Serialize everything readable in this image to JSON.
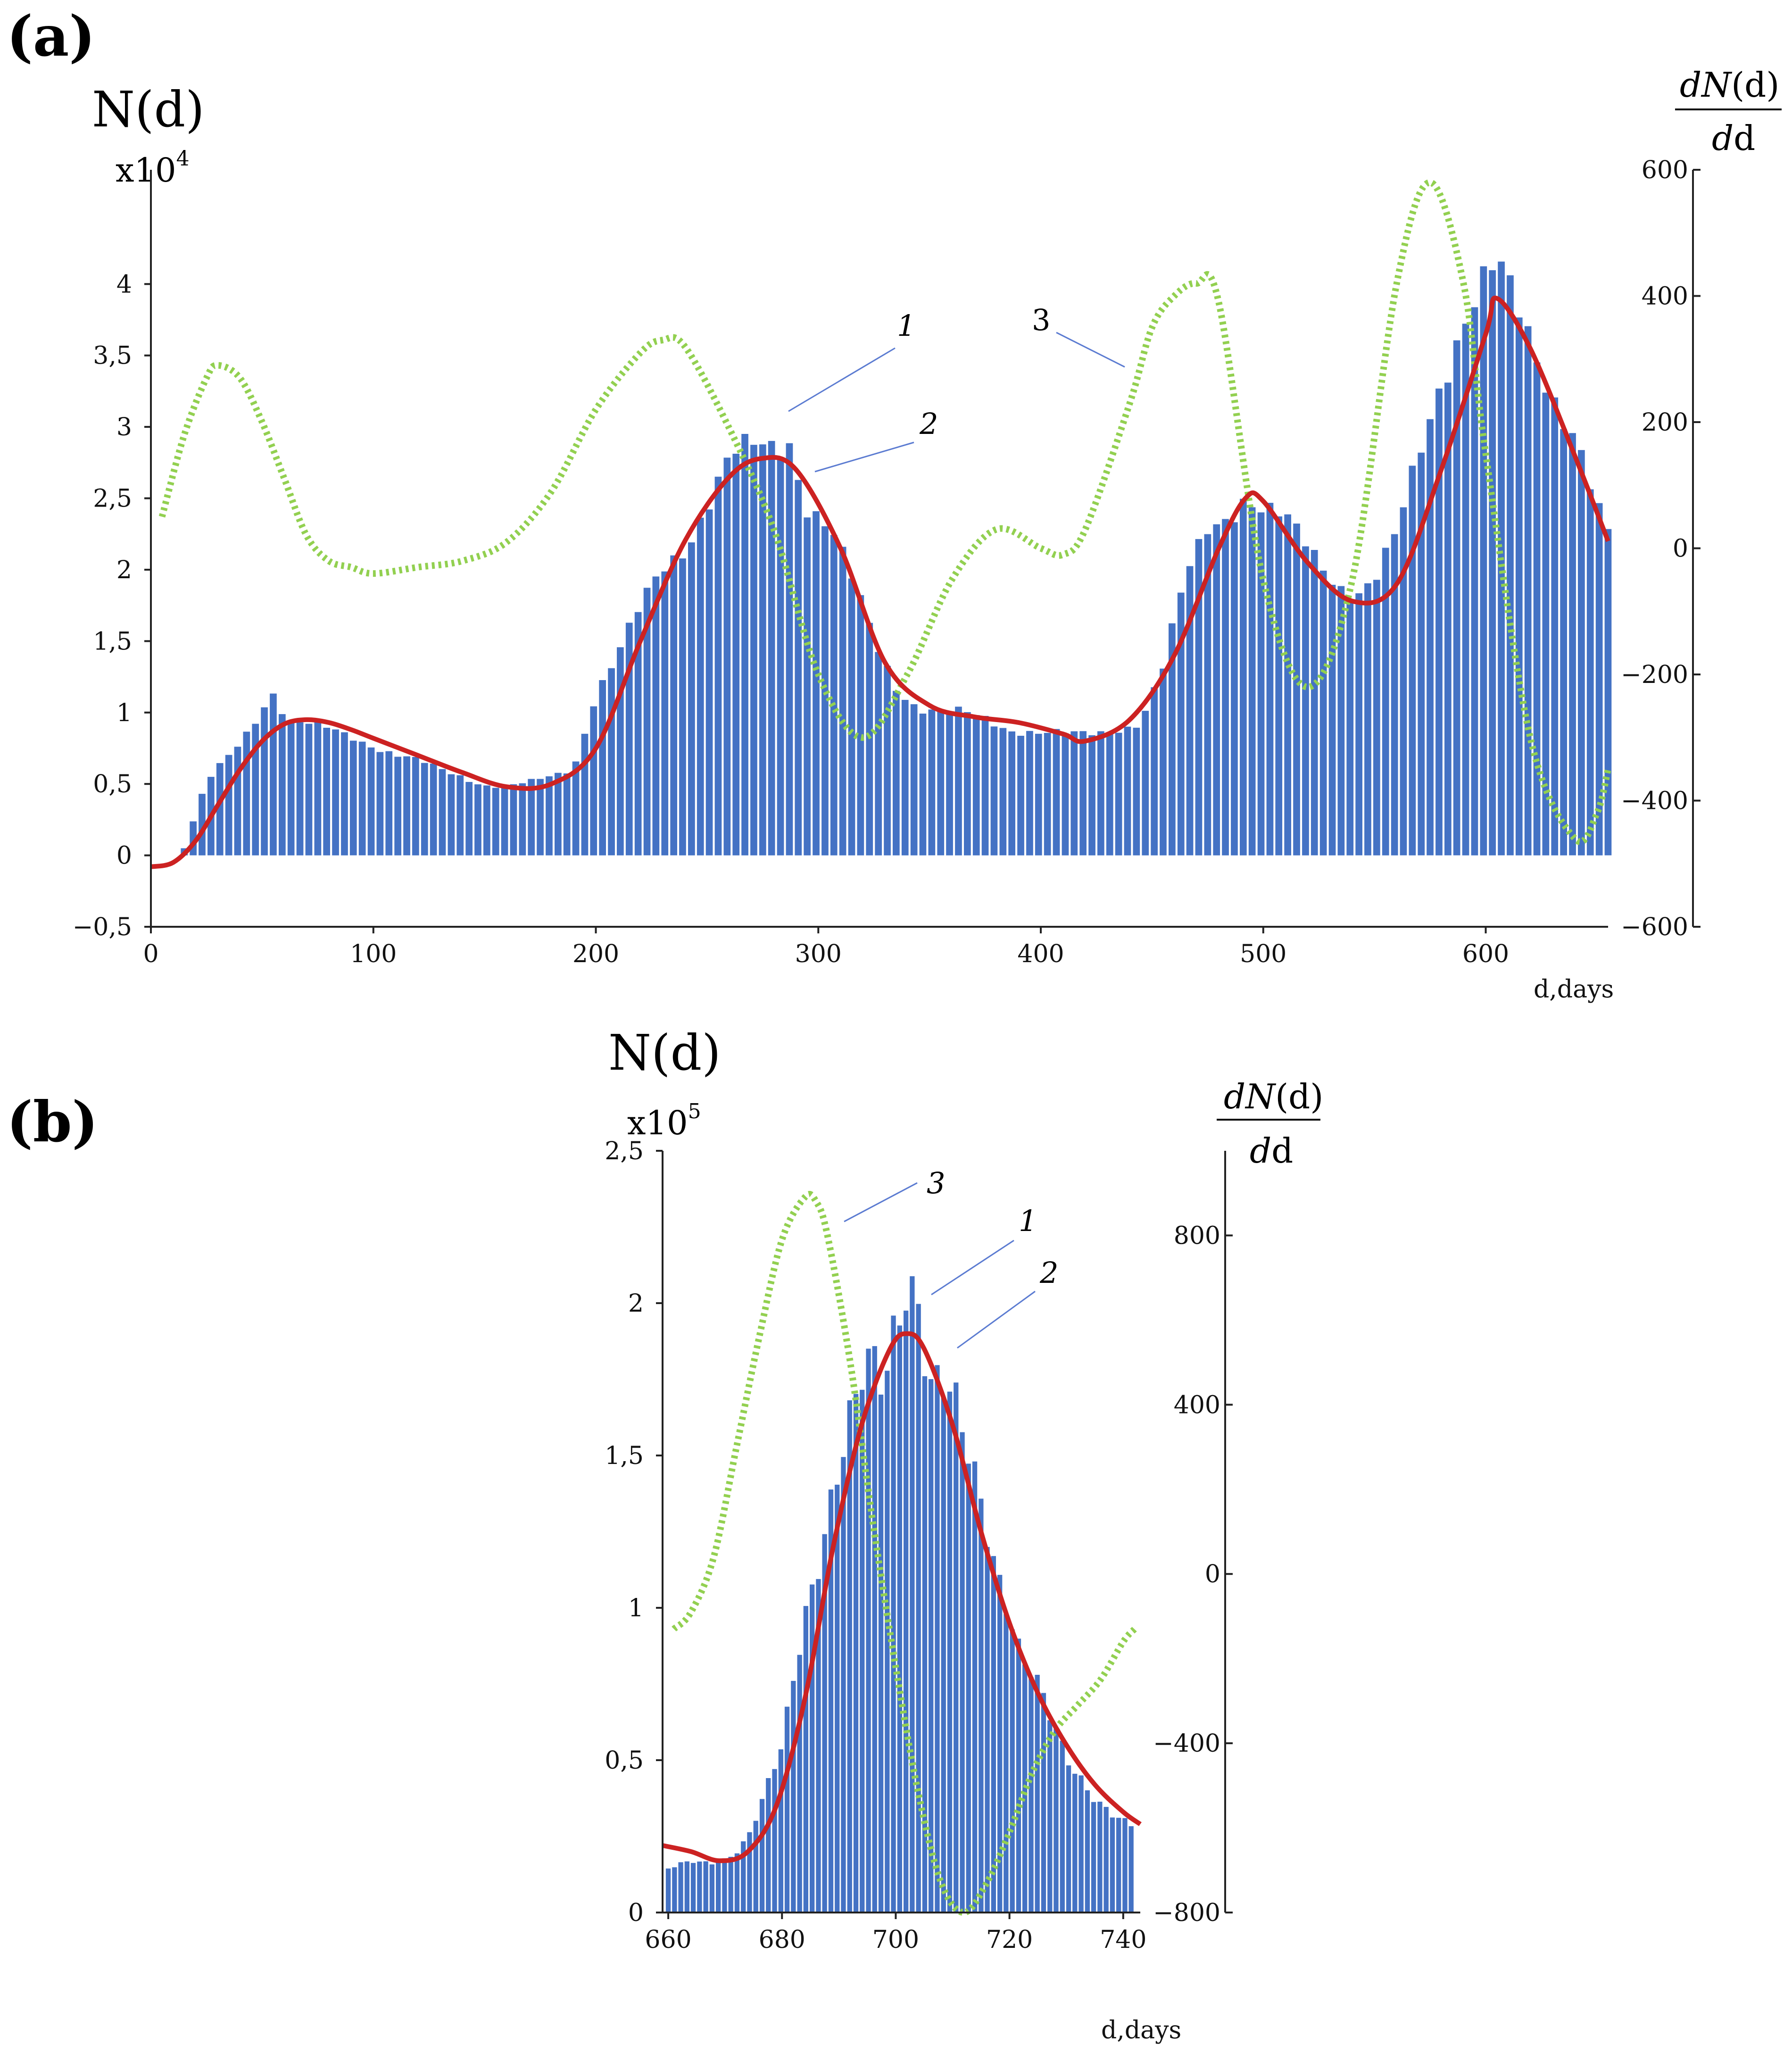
{
  "figure": {
    "panels": [
      {
        "id": "a",
        "label": "(a)",
        "y_label": "N(d)",
        "y_multiplier": "x10",
        "y_multiplier_exp": "4",
        "right_label_num_pre": "dN",
        "right_label_num_post": "(d)",
        "right_label_den_pre": "d",
        "right_label_den_post": "d",
        "x_axis_label": "d,days",
        "annotations": [
          {
            "text": "1",
            "italic": true
          },
          {
            "text": "2",
            "italic": true
          },
          {
            "text": "3",
            "italic": false
          }
        ]
      },
      {
        "id": "b",
        "label": "(b)",
        "y_label": "N(d)",
        "y_multiplier": "x10",
        "y_multiplier_exp": "5",
        "right_label_num_pre": "dN",
        "right_label_num_post": "(d)",
        "right_label_den_pre": "d",
        "right_label_den_post": "d",
        "x_axis_label": "d,days",
        "annotations": [
          {
            "text": "3",
            "italic": true
          },
          {
            "text": "1",
            "italic": true
          },
          {
            "text": "2",
            "italic": true
          }
        ]
      }
    ]
  },
  "chart_data": [
    {
      "type": "bar",
      "panel": "a",
      "x_ticks": [
        "0",
        "100",
        "200",
        "300",
        "400",
        "500",
        "600"
      ],
      "y_left_ticks": [
        "−0,5",
        "0",
        "0,5",
        "1",
        "1,5",
        "2",
        "2,5",
        "3",
        "3,5",
        "4"
      ],
      "y_right_ticks": [
        "−600",
        "−400",
        "−200",
        "0",
        "200",
        "400",
        "600"
      ],
      "xlim": [
        0,
        655
      ],
      "ylim_left": [
        -0.5,
        4.8
      ],
      "ylim_right": [
        -600,
        600
      ],
      "series": [
        {
          "name": "1",
          "kind": "bar",
          "color": "#4472c4",
          "x": [
            15,
            25,
            40,
            52,
            55,
            62,
            70,
            80,
            90,
            100,
            110,
            120,
            130,
            140,
            150,
            160,
            170,
            180,
            190,
            200,
            210,
            220,
            230,
            240,
            250,
            260,
            270,
            280,
            287,
            295,
            305,
            315,
            325,
            335,
            345,
            355,
            365,
            375,
            385,
            395,
            405,
            415,
            425,
            435,
            445,
            455,
            465,
            475,
            485,
            492,
            500,
            510,
            520,
            530,
            540,
            550,
            560,
            570,
            580,
            590,
            600,
            605,
            610,
            620,
            630,
            640,
            650,
            655
          ],
          "y": [
            0.05,
            0.5,
            0.8,
            1.1,
            1.15,
            0.92,
            0.9,
            0.88,
            0.85,
            0.78,
            0.7,
            0.65,
            0.6,
            0.56,
            0.5,
            0.48,
            0.5,
            0.55,
            0.62,
            1.15,
            1.4,
            1.7,
            2.0,
            2.2,
            2.5,
            2.75,
            2.8,
            2.85,
            2.95,
            2.5,
            2.3,
            1.9,
            1.5,
            1.2,
            1.05,
            1.0,
            0.98,
            0.95,
            0.9,
            0.88,
            0.85,
            0.83,
            0.85,
            0.9,
            0.95,
            1.3,
            1.9,
            2.3,
            2.45,
            2.55,
            2.4,
            2.3,
            2.15,
            2.0,
            1.85,
            1.9,
            2.2,
            2.8,
            3.4,
            3.8,
            4.0,
            4.05,
            3.9,
            3.6,
            3.3,
            3.0,
            2.4,
            2.2
          ]
        },
        {
          "name": "2",
          "kind": "line",
          "color": "#cc2222",
          "x": [
            0,
            10,
            20,
            30,
            40,
            50,
            60,
            70,
            80,
            90,
            100,
            120,
            140,
            160,
            180,
            200,
            220,
            240,
            260,
            275,
            290,
            310,
            330,
            350,
            370,
            390,
            410,
            420,
            440,
            460,
            480,
            492,
            500,
            520,
            540,
            560,
            580,
            600,
            605,
            620,
            640,
            655
          ],
          "y": [
            -0.08,
            -0.05,
            0.1,
            0.35,
            0.6,
            0.8,
            0.92,
            0.95,
            0.93,
            0.88,
            0.82,
            0.7,
            0.58,
            0.48,
            0.5,
            0.75,
            1.5,
            2.2,
            2.65,
            2.78,
            2.7,
            2.15,
            1.35,
            1.05,
            0.97,
            0.93,
            0.85,
            0.8,
            0.95,
            1.4,
            2.15,
            2.5,
            2.48,
            2.05,
            1.78,
            1.9,
            2.7,
            3.65,
            3.9,
            3.55,
            2.8,
            2.2
          ]
        },
        {
          "name": "3",
          "kind": "line",
          "axis": "right",
          "color": "#92d050",
          "x": [
            5,
            15,
            25,
            30,
            40,
            50,
            60,
            70,
            80,
            90,
            100,
            120,
            140,
            160,
            180,
            200,
            220,
            230,
            240,
            260,
            280,
            300,
            320,
            340,
            360,
            380,
            400,
            410,
            420,
            440,
            450,
            460,
            470,
            480,
            500,
            520,
            540,
            560,
            575,
            590,
            600,
            620,
            640,
            650,
            655
          ],
          "y": [
            50,
            180,
            270,
            290,
            270,
            200,
            110,
            20,
            -20,
            -30,
            -40,
            -30,
            -20,
            10,
            90,
            220,
            310,
            330,
            320,
            190,
            30,
            -200,
            -300,
            -200,
            -50,
            30,
            0,
            -10,
            30,
            230,
            350,
            400,
            420,
            390,
            -50,
            -220,
            -50,
            420,
            580,
            420,
            150,
            -300,
            -460,
            -420,
            -350
          ]
        }
      ]
    },
    {
      "type": "bar",
      "panel": "b",
      "x_ticks": [
        "660",
        "680",
        "700",
        "720",
        "740"
      ],
      "y_left_ticks": [
        "0",
        "0,5",
        "1",
        "1,5",
        "2",
        "2,5"
      ],
      "y_right_ticks": [
        "−800",
        "−400",
        "0",
        "400",
        "800"
      ],
      "xlim": [
        659,
        743
      ],
      "ylim_left": [
        0,
        2.5
      ],
      "ylim_right": [
        -800,
        1000
      ],
      "series": [
        {
          "name": "1",
          "kind": "bar",
          "color": "#4472c4",
          "x": [
            660,
            662,
            664,
            666,
            668,
            670,
            672,
            674,
            676,
            678,
            680,
            682,
            684,
            686,
            688,
            690,
            692,
            694,
            696,
            698,
            700,
            702,
            704,
            706,
            708,
            710,
            712,
            714,
            716,
            718,
            720,
            722,
            724,
            726,
            728,
            730,
            732,
            734,
            736,
            738,
            740,
            742
          ],
          "y": [
            0.15,
            0.16,
            0.17,
            0.16,
            0.16,
            0.17,
            0.2,
            0.25,
            0.35,
            0.45,
            0.55,
            0.75,
            0.95,
            1.1,
            1.3,
            1.5,
            1.65,
            1.78,
            1.8,
            1.7,
            1.9,
            2.05,
            2.02,
            1.75,
            1.78,
            1.7,
            1.55,
            1.4,
            1.25,
            1.1,
            1.0,
            0.85,
            0.8,
            0.7,
            0.6,
            0.5,
            0.45,
            0.4,
            0.36,
            0.33,
            0.3,
            0.28
          ]
        },
        {
          "name": "2",
          "kind": "line",
          "color": "#cc2222",
          "x": [
            659,
            664,
            669,
            674,
            679,
            684,
            689,
            694,
            699,
            702,
            705,
            710,
            715,
            720,
            725,
            730,
            735,
            740,
            743
          ],
          "y": [
            0.22,
            0.2,
            0.17,
            0.2,
            0.35,
            0.7,
            1.2,
            1.6,
            1.85,
            1.9,
            1.85,
            1.6,
            1.25,
            0.95,
            0.72,
            0.55,
            0.42,
            0.33,
            0.29
          ]
        },
        {
          "name": "3",
          "kind": "line",
          "axis": "right",
          "color": "#92d050",
          "x": [
            661,
            664,
            668,
            672,
            676,
            680,
            684,
            686,
            688,
            692,
            696,
            700,
            704,
            708,
            712,
            716,
            720,
            724,
            728,
            732,
            736,
            740,
            742
          ],
          "y": [
            -130,
            -90,
            40,
            300,
            560,
            790,
            890,
            880,
            800,
            500,
            120,
            -220,
            -520,
            -730,
            -800,
            -730,
            -610,
            -470,
            -370,
            -310,
            -250,
            -160,
            -130
          ]
        }
      ]
    }
  ]
}
